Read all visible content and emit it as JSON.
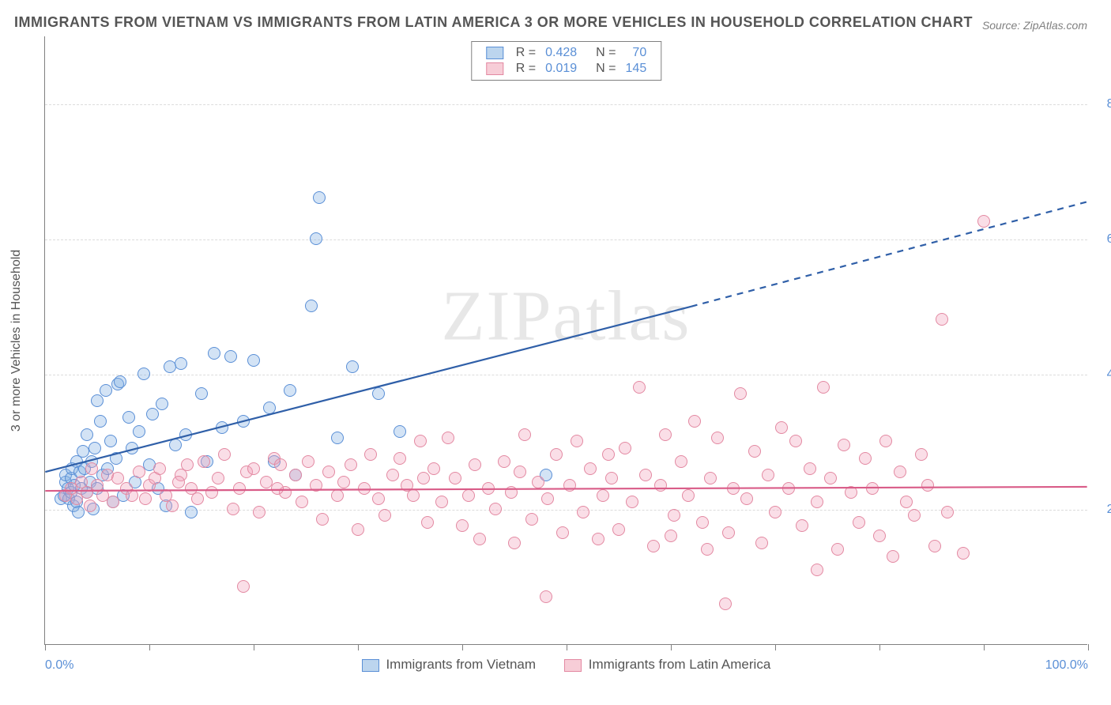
{
  "title": "IMMIGRANTS FROM VIETNAM VS IMMIGRANTS FROM LATIN AMERICA 3 OR MORE VEHICLES IN HOUSEHOLD CORRELATION CHART",
  "source": "Source: ZipAtlas.com",
  "watermark": "ZIPatlas",
  "y_axis_label": "3 or more Vehicles in Household",
  "chart": {
    "type": "scatter",
    "background_color": "#ffffff",
    "grid_color": "#dcdcdc",
    "axis_color": "#808080",
    "tick_label_color": "#5a8fd6",
    "axis_label_color": "#555555",
    "xlim": [
      0,
      100
    ],
    "ylim": [
      0,
      90
    ],
    "x_ticks": [
      0,
      10,
      20,
      30,
      40,
      50,
      60,
      70,
      80,
      90,
      100
    ],
    "x_tick_labels": {
      "0": "0.0%",
      "100": "100.0%"
    },
    "y_gridlines": [
      20,
      40,
      60,
      80
    ],
    "y_tick_labels": {
      "20": "20.0%",
      "40": "40.0%",
      "60": "60.0%",
      "80": "80.0%"
    },
    "marker_radius": 8,
    "marker_stroke_width": 1.2,
    "trend_line_width": 2.2,
    "title_fontsize": 18,
    "label_fontsize": 16
  },
  "series": [
    {
      "name": "Immigrants from Vietnam",
      "swatch_fill": "#bcd5ee",
      "swatch_stroke": "#5a8fd6",
      "marker_fill": "rgba(130,175,225,0.35)",
      "marker_stroke": "#5a8fd6",
      "trend_color": "#2f5fa8",
      "trend_p1": [
        0,
        25.5
      ],
      "trend_p2_solid": [
        62,
        50
      ],
      "trend_p2_dash": [
        100,
        65.5
      ],
      "R": "0.428",
      "N": "70",
      "points": [
        [
          1.5,
          21.5
        ],
        [
          1.8,
          22
        ],
        [
          2,
          24
        ],
        [
          2,
          25
        ],
        [
          2.2,
          23
        ],
        [
          2.3,
          21.5
        ],
        [
          2.5,
          22.5
        ],
        [
          2.5,
          24.5
        ],
        [
          2.6,
          26
        ],
        [
          2.7,
          20.5
        ],
        [
          2.8,
          23.5
        ],
        [
          3,
          27
        ],
        [
          3,
          21
        ],
        [
          3.2,
          19.5
        ],
        [
          3.3,
          25.5
        ],
        [
          3.5,
          23
        ],
        [
          3.6,
          28.5
        ],
        [
          3.8,
          26
        ],
        [
          4,
          31
        ],
        [
          4,
          22.5
        ],
        [
          4.3,
          24
        ],
        [
          4.5,
          27
        ],
        [
          4.6,
          20
        ],
        [
          4.8,
          29
        ],
        [
          5,
          23
        ],
        [
          5,
          36
        ],
        [
          5.3,
          33
        ],
        [
          5.5,
          25
        ],
        [
          5.8,
          37.5
        ],
        [
          6,
          26
        ],
        [
          6.3,
          30
        ],
        [
          6.5,
          21
        ],
        [
          6.8,
          27.5
        ],
        [
          7,
          38.5
        ],
        [
          7.2,
          38.8
        ],
        [
          7.5,
          22
        ],
        [
          8,
          33.5
        ],
        [
          8.3,
          29
        ],
        [
          8.6,
          24
        ],
        [
          9,
          31.5
        ],
        [
          9.5,
          40
        ],
        [
          10,
          26.5
        ],
        [
          10.3,
          34
        ],
        [
          10.8,
          23
        ],
        [
          11.2,
          35.5
        ],
        [
          11.6,
          20.5
        ],
        [
          12,
          41
        ],
        [
          12.5,
          29.5
        ],
        [
          13,
          41.5
        ],
        [
          13.5,
          31
        ],
        [
          14,
          19.5
        ],
        [
          15,
          37
        ],
        [
          15.5,
          27
        ],
        [
          16.2,
          43
        ],
        [
          17,
          32
        ],
        [
          17.8,
          42.5
        ],
        [
          19,
          33
        ],
        [
          20,
          42
        ],
        [
          21.5,
          35
        ],
        [
          22,
          27
        ],
        [
          23.5,
          37.5
        ],
        [
          24,
          25
        ],
        [
          25.5,
          50
        ],
        [
          26,
          60
        ],
        [
          26.3,
          66
        ],
        [
          28,
          30.5
        ],
        [
          29.5,
          41
        ],
        [
          32,
          37
        ],
        [
          34,
          31.5
        ],
        [
          48,
          25
        ]
      ]
    },
    {
      "name": "Immigrants from Latin America",
      "swatch_fill": "#f7cdd7",
      "swatch_stroke": "#e389a2",
      "marker_fill": "rgba(240,160,185,0.35)",
      "marker_stroke": "#e389a2",
      "trend_color": "#d95c88",
      "trend_p1": [
        0,
        22.7
      ],
      "trend_p2_solid": [
        100,
        23.3
      ],
      "trend_p2_dash": [
        100,
        23.3
      ],
      "R": "0.019",
      "N": "145",
      "points": [
        [
          2,
          22
        ],
        [
          2.5,
          23
        ],
        [
          3,
          21.5
        ],
        [
          3.5,
          24
        ],
        [
          4,
          22.5
        ],
        [
          4.3,
          20.5
        ],
        [
          5,
          23.5
        ],
        [
          5.5,
          22
        ],
        [
          6,
          25
        ],
        [
          6.5,
          21
        ],
        [
          7,
          24.5
        ],
        [
          7.8,
          23
        ],
        [
          8.3,
          22
        ],
        [
          9,
          25.5
        ],
        [
          9.6,
          21.5
        ],
        [
          10,
          23.5
        ],
        [
          10.5,
          24.5
        ],
        [
          11,
          26
        ],
        [
          11.6,
          22
        ],
        [
          12.2,
          20.5
        ],
        [
          13,
          25
        ],
        [
          13.6,
          26.5
        ],
        [
          14,
          23
        ],
        [
          14.6,
          21.5
        ],
        [
          15.2,
          27
        ],
        [
          16,
          22.5
        ],
        [
          16.6,
          24.5
        ],
        [
          17.2,
          28
        ],
        [
          18,
          20
        ],
        [
          18.6,
          23
        ],
        [
          19,
          8.5
        ],
        [
          19.3,
          25.5
        ],
        [
          20,
          26
        ],
        [
          20.5,
          19.5
        ],
        [
          21.2,
          24
        ],
        [
          22,
          27.5
        ],
        [
          22.6,
          26.5
        ],
        [
          23,
          22.5
        ],
        [
          24,
          25
        ],
        [
          24.6,
          21
        ],
        [
          25.2,
          27
        ],
        [
          26,
          23.5
        ],
        [
          26.6,
          18.5
        ],
        [
          27.2,
          25.5
        ],
        [
          28,
          22
        ],
        [
          28.6,
          24
        ],
        [
          29.3,
          26.5
        ],
        [
          30,
          17
        ],
        [
          30.6,
          23
        ],
        [
          31.2,
          28
        ],
        [
          32,
          21.5
        ],
        [
          32.6,
          19
        ],
        [
          33.3,
          25
        ],
        [
          34,
          27.5
        ],
        [
          34.7,
          23.5
        ],
        [
          35.3,
          22
        ],
        [
          36,
          30
        ],
        [
          36.7,
          18
        ],
        [
          37.3,
          26
        ],
        [
          38,
          21
        ],
        [
          38.6,
          30.5
        ],
        [
          39.3,
          24.5
        ],
        [
          40,
          17.5
        ],
        [
          40.6,
          22
        ],
        [
          41.2,
          26.5
        ],
        [
          41.7,
          15.5
        ],
        [
          42.5,
          23
        ],
        [
          43.2,
          20
        ],
        [
          44,
          27
        ],
        [
          44.7,
          22.5
        ],
        [
          45,
          15
        ],
        [
          45.5,
          25.5
        ],
        [
          46,
          31
        ],
        [
          46.7,
          18.5
        ],
        [
          47.3,
          24
        ],
        [
          48,
          7
        ],
        [
          48.2,
          21.5
        ],
        [
          49,
          28
        ],
        [
          49.6,
          16.5
        ],
        [
          50.3,
          23.5
        ],
        [
          51,
          30
        ],
        [
          51.6,
          19.5
        ],
        [
          52.3,
          26
        ],
        [
          53,
          15.5
        ],
        [
          53.5,
          22
        ],
        [
          54.3,
          24.5
        ],
        [
          55,
          17
        ],
        [
          55.6,
          29
        ],
        [
          56.3,
          21
        ],
        [
          57,
          38
        ],
        [
          57.6,
          25
        ],
        [
          58.3,
          14.5
        ],
        [
          59,
          23.5
        ],
        [
          59.5,
          31
        ],
        [
          60,
          16
        ],
        [
          60.3,
          19
        ],
        [
          61,
          27
        ],
        [
          61.7,
          22
        ],
        [
          62.3,
          33
        ],
        [
          63,
          18
        ],
        [
          63.5,
          14
        ],
        [
          63.8,
          24.5
        ],
        [
          64.5,
          30.5
        ],
        [
          65.2,
          6
        ],
        [
          65.5,
          16.5
        ],
        [
          66,
          23
        ],
        [
          66.7,
          37
        ],
        [
          67.3,
          21.5
        ],
        [
          68,
          28.5
        ],
        [
          68.7,
          15
        ],
        [
          69.3,
          25
        ],
        [
          70,
          19.5
        ],
        [
          70.6,
          32
        ],
        [
          71.3,
          23
        ],
        [
          72,
          30
        ],
        [
          72.6,
          17.5
        ],
        [
          73.3,
          26
        ],
        [
          74,
          21
        ],
        [
          74,
          11
        ],
        [
          74.6,
          38
        ],
        [
          75.3,
          24.5
        ],
        [
          76,
          14
        ],
        [
          76.6,
          29.5
        ],
        [
          77.3,
          22.5
        ],
        [
          78,
          18
        ],
        [
          78.6,
          27.5
        ],
        [
          79.3,
          23
        ],
        [
          80,
          16
        ],
        [
          80.6,
          30
        ],
        [
          81.3,
          13
        ],
        [
          82,
          25.5
        ],
        [
          82.6,
          21
        ],
        [
          83.3,
          19
        ],
        [
          84,
          28
        ],
        [
          84.6,
          23.5
        ],
        [
          85.3,
          14.5
        ],
        [
          86,
          48
        ],
        [
          86.5,
          19.5
        ],
        [
          88,
          13.5
        ],
        [
          90,
          62.5
        ],
        [
          4.5,
          26
        ],
        [
          12.8,
          24
        ],
        [
          22.3,
          23
        ],
        [
          36.3,
          24.5
        ],
        [
          54,
          28
        ]
      ]
    }
  ],
  "legend_top_labels": {
    "R": "R =",
    "N": "N ="
  }
}
